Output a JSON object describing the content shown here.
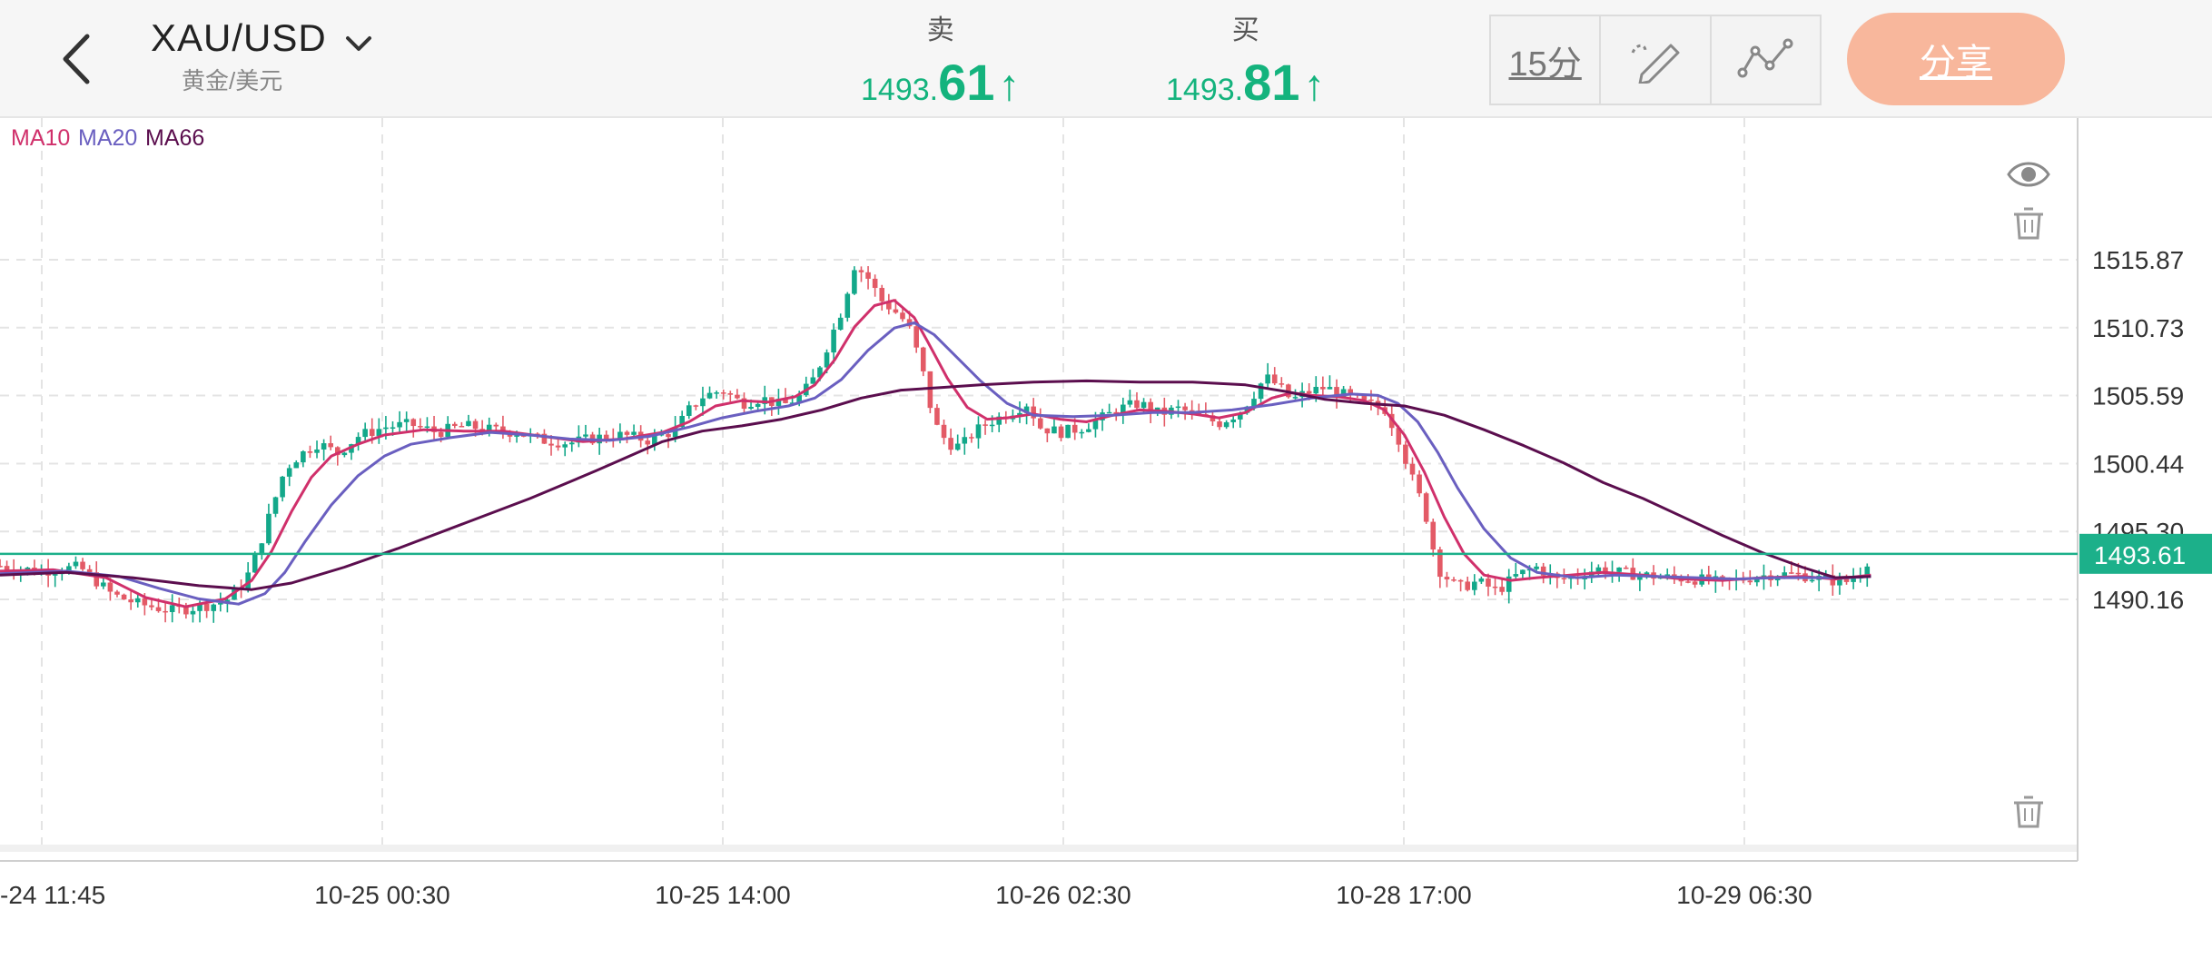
{
  "header": {
    "back_icon": "chevron-left-icon",
    "symbol": "XAU/USD",
    "symbol_sub": "黄金/美元",
    "sell_label": "卖",
    "sell_price_small": "1493.",
    "sell_price_big": "61",
    "buy_label": "买",
    "buy_price_small": "1493.",
    "buy_price_big": "81",
    "arrow": "↑",
    "interval": "15分",
    "share": "分享",
    "price_color": "#14b37d",
    "share_color": "#f8b79c"
  },
  "legend": [
    {
      "name": "MA10",
      "color": "#d0306b"
    },
    {
      "name": "MA20",
      "color": "#6a5fc0"
    },
    {
      "name": "MA66",
      "color": "#5b0e4e"
    }
  ],
  "chart_data": {
    "type": "candlestick",
    "y_ticks": [
      1515.87,
      1510.73,
      1505.59,
      1500.44,
      1495.3,
      1490.16
    ],
    "x_ticks": [
      "-24 11:45",
      "10-25 00:30",
      "10-25 14:00",
      "10-26 02:30",
      "10-28 17:00",
      "10-29 06:30"
    ],
    "current_price": "1493.61",
    "current_price_color": "#1cb08a",
    "up_color": "#13a88a",
    "down_color": "#e35a66",
    "ylim": [
      1486.0,
      1519.0
    ],
    "grid": true,
    "price_path": [
      [
        0,
        1492.7
      ],
      [
        30,
        1492.3
      ],
      [
        60,
        1492.6
      ],
      [
        85,
        1490.5
      ],
      [
        105,
        1489.8
      ],
      [
        130,
        1489.3
      ],
      [
        150,
        1489.6
      ],
      [
        170,
        1490.0
      ],
      [
        185,
        1491.5
      ],
      [
        195,
        1494.0
      ],
      [
        205,
        1497.0
      ],
      [
        215,
        1500.0
      ],
      [
        225,
        1501.0
      ],
      [
        240,
        1502.0
      ],
      [
        255,
        1501.2
      ],
      [
        270,
        1502.5
      ],
      [
        290,
        1503.2
      ],
      [
        310,
        1503.4
      ],
      [
        330,
        1502.8
      ],
      [
        350,
        1503.3
      ],
      [
        370,
        1503.0
      ],
      [
        390,
        1502.8
      ],
      [
        410,
        1502.2
      ],
      [
        430,
        1502.0
      ],
      [
        450,
        1502.4
      ],
      [
        470,
        1502.6
      ],
      [
        490,
        1502.2
      ],
      [
        510,
        1503.0
      ],
      [
        520,
        1504.5
      ],
      [
        530,
        1505.5
      ],
      [
        545,
        1506.0
      ],
      [
        560,
        1505.0
      ],
      [
        575,
        1505.4
      ],
      [
        590,
        1504.8
      ],
      [
        605,
        1505.6
      ],
      [
        615,
        1507.0
      ],
      [
        625,
        1509.5
      ],
      [
        635,
        1512.0
      ],
      [
        645,
        1515.5
      ],
      [
        655,
        1514.5
      ],
      [
        665,
        1512.8
      ],
      [
        675,
        1512.0
      ],
      [
        685,
        1511.0
      ],
      [
        695,
        1508.0
      ],
      [
        705,
        1503.5
      ],
      [
        715,
        1502.0
      ],
      [
        725,
        1501.7
      ],
      [
        735,
        1502.8
      ],
      [
        745,
        1503.5
      ],
      [
        760,
        1504.2
      ],
      [
        775,
        1505.0
      ],
      [
        785,
        1503.2
      ],
      [
        800,
        1502.8
      ],
      [
        815,
        1503.1
      ],
      [
        830,
        1503.8
      ],
      [
        845,
        1504.6
      ],
      [
        860,
        1505.0
      ],
      [
        875,
        1504.2
      ],
      [
        890,
        1504.6
      ],
      [
        905,
        1504.0
      ],
      [
        920,
        1503.5
      ],
      [
        935,
        1504.3
      ],
      [
        945,
        1505.5
      ],
      [
        955,
        1507.0
      ],
      [
        965,
        1506.3
      ],
      [
        975,
        1505.2
      ],
      [
        985,
        1505.8
      ],
      [
        1000,
        1506.2
      ],
      [
        1015,
        1505.6
      ],
      [
        1030,
        1505.0
      ],
      [
        1045,
        1504.6
      ],
      [
        1055,
        1502.5
      ],
      [
        1065,
        1499.5
      ],
      [
        1075,
        1497.0
      ],
      [
        1085,
        1492.5
      ],
      [
        1100,
        1491.0
      ],
      [
        1115,
        1491.5
      ],
      [
        1130,
        1490.8
      ],
      [
        1145,
        1492.0
      ],
      [
        1160,
        1492.6
      ],
      [
        1175,
        1491.6
      ],
      [
        1190,
        1491.9
      ],
      [
        1205,
        1492.5
      ],
      [
        1220,
        1492.2
      ],
      [
        1240,
        1492.0
      ],
      [
        1260,
        1491.8
      ],
      [
        1280,
        1491.7
      ],
      [
        1300,
        1491.4
      ],
      [
        1320,
        1491.8
      ],
      [
        1340,
        1492.1
      ],
      [
        1360,
        1492.0
      ],
      [
        1380,
        1491.6
      ],
      [
        1395,
        1491.5
      ],
      [
        1405,
        1492.3
      ],
      [
        1412,
        1493.6
      ]
    ],
    "ma10": [
      [
        0,
        1492.3
      ],
      [
        40,
        1492.4
      ],
      [
        80,
        1491.8
      ],
      [
        110,
        1490.3
      ],
      [
        140,
        1489.6
      ],
      [
        170,
        1490.2
      ],
      [
        190,
        1491.6
      ],
      [
        205,
        1493.8
      ],
      [
        220,
        1496.8
      ],
      [
        235,
        1499.4
      ],
      [
        250,
        1501.0
      ],
      [
        270,
        1501.9
      ],
      [
        290,
        1502.6
      ],
      [
        320,
        1503.0
      ],
      [
        350,
        1502.9
      ],
      [
        380,
        1502.9
      ],
      [
        410,
        1502.5
      ],
      [
        440,
        1502.1
      ],
      [
        470,
        1502.3
      ],
      [
        500,
        1502.8
      ],
      [
        520,
        1503.6
      ],
      [
        540,
        1504.8
      ],
      [
        560,
        1505.2
      ],
      [
        580,
        1505.1
      ],
      [
        600,
        1505.5
      ],
      [
        615,
        1506.4
      ],
      [
        630,
        1508.3
      ],
      [
        645,
        1510.8
      ],
      [
        660,
        1512.4
      ],
      [
        675,
        1512.8
      ],
      [
        690,
        1511.5
      ],
      [
        700,
        1509.7
      ],
      [
        715,
        1506.9
      ],
      [
        730,
        1504.7
      ],
      [
        745,
        1503.8
      ],
      [
        760,
        1503.9
      ],
      [
        780,
        1504.2
      ],
      [
        800,
        1503.8
      ],
      [
        820,
        1503.6
      ],
      [
        840,
        1504.1
      ],
      [
        860,
        1504.5
      ],
      [
        880,
        1504.4
      ],
      [
        900,
        1504.2
      ],
      [
        920,
        1503.9
      ],
      [
        940,
        1504.3
      ],
      [
        960,
        1505.4
      ],
      [
        975,
        1505.8
      ],
      [
        990,
        1505.6
      ],
      [
        1010,
        1505.5
      ],
      [
        1030,
        1505.2
      ],
      [
        1045,
        1504.5
      ],
      [
        1060,
        1502.6
      ],
      [
        1075,
        1499.8
      ],
      [
        1090,
        1496.4
      ],
      [
        1105,
        1493.6
      ],
      [
        1120,
        1492.0
      ],
      [
        1140,
        1491.6
      ],
      [
        1160,
        1491.8
      ],
      [
        1185,
        1492.0
      ],
      [
        1210,
        1492.2
      ],
      [
        1240,
        1492.0
      ],
      [
        1270,
        1491.7
      ],
      [
        1300,
        1491.6
      ],
      [
        1330,
        1491.8
      ],
      [
        1360,
        1491.9
      ],
      [
        1385,
        1491.7
      ],
      [
        1412,
        1492.0
      ]
    ],
    "ma20": [
      [
        0,
        1492.1
      ],
      [
        50,
        1492.3
      ],
      [
        90,
        1491.9
      ],
      [
        120,
        1491.0
      ],
      [
        150,
        1490.2
      ],
      [
        180,
        1489.8
      ],
      [
        200,
        1490.6
      ],
      [
        215,
        1492.2
      ],
      [
        230,
        1494.5
      ],
      [
        250,
        1497.3
      ],
      [
        270,
        1499.5
      ],
      [
        290,
        1501.0
      ],
      [
        310,
        1501.9
      ],
      [
        340,
        1502.4
      ],
      [
        370,
        1502.8
      ],
      [
        400,
        1502.6
      ],
      [
        430,
        1502.3
      ],
      [
        460,
        1502.2
      ],
      [
        490,
        1502.5
      ],
      [
        520,
        1503.2
      ],
      [
        545,
        1503.9
      ],
      [
        570,
        1504.4
      ],
      [
        595,
        1504.8
      ],
      [
        615,
        1505.4
      ],
      [
        635,
        1506.8
      ],
      [
        655,
        1509.0
      ],
      [
        675,
        1510.7
      ],
      [
        690,
        1511.1
      ],
      [
        705,
        1510.2
      ],
      [
        720,
        1508.7
      ],
      [
        740,
        1506.7
      ],
      [
        760,
        1505.0
      ],
      [
        780,
        1504.1
      ],
      [
        810,
        1504.0
      ],
      [
        840,
        1504.1
      ],
      [
        870,
        1504.3
      ],
      [
        900,
        1504.3
      ],
      [
        930,
        1504.5
      ],
      [
        960,
        1504.9
      ],
      [
        990,
        1505.4
      ],
      [
        1020,
        1505.7
      ],
      [
        1040,
        1505.6
      ],
      [
        1055,
        1505.0
      ],
      [
        1070,
        1503.6
      ],
      [
        1085,
        1501.3
      ],
      [
        1100,
        1498.6
      ],
      [
        1120,
        1495.5
      ],
      [
        1140,
        1493.3
      ],
      [
        1160,
        1492.2
      ],
      [
        1190,
        1491.8
      ],
      [
        1220,
        1492.0
      ],
      [
        1250,
        1491.9
      ],
      [
        1280,
        1491.8
      ],
      [
        1310,
        1491.7
      ],
      [
        1340,
        1491.8
      ],
      [
        1370,
        1491.8
      ],
      [
        1395,
        1491.8
      ],
      [
        1412,
        1491.9
      ]
    ],
    "ma66": [
      [
        0,
        1492.0
      ],
      [
        50,
        1492.2
      ],
      [
        100,
        1491.8
      ],
      [
        150,
        1491.2
      ],
      [
        190,
        1490.9
      ],
      [
        220,
        1491.4
      ],
      [
        260,
        1492.6
      ],
      [
        300,
        1494.0
      ],
      [
        350,
        1495.9
      ],
      [
        400,
        1497.8
      ],
      [
        450,
        1499.9
      ],
      [
        500,
        1502.1
      ],
      [
        530,
        1502.9
      ],
      [
        560,
        1503.3
      ],
      [
        590,
        1503.8
      ],
      [
        620,
        1504.5
      ],
      [
        650,
        1505.4
      ],
      [
        680,
        1506.0
      ],
      [
        710,
        1506.2
      ],
      [
        740,
        1506.4
      ],
      [
        780,
        1506.6
      ],
      [
        820,
        1506.7
      ],
      [
        860,
        1506.6
      ],
      [
        900,
        1506.6
      ],
      [
        940,
        1506.4
      ],
      [
        970,
        1505.9
      ],
      [
        1000,
        1505.3
      ],
      [
        1030,
        1505.0
      ],
      [
        1060,
        1504.8
      ],
      [
        1090,
        1504.1
      ],
      [
        1120,
        1503.0
      ],
      [
        1150,
        1501.8
      ],
      [
        1180,
        1500.5
      ],
      [
        1210,
        1499.0
      ],
      [
        1240,
        1497.8
      ],
      [
        1270,
        1496.4
      ],
      [
        1300,
        1495.0
      ],
      [
        1330,
        1493.7
      ],
      [
        1360,
        1492.6
      ],
      [
        1385,
        1491.8
      ],
      [
        1412,
        1491.9
      ]
    ]
  }
}
